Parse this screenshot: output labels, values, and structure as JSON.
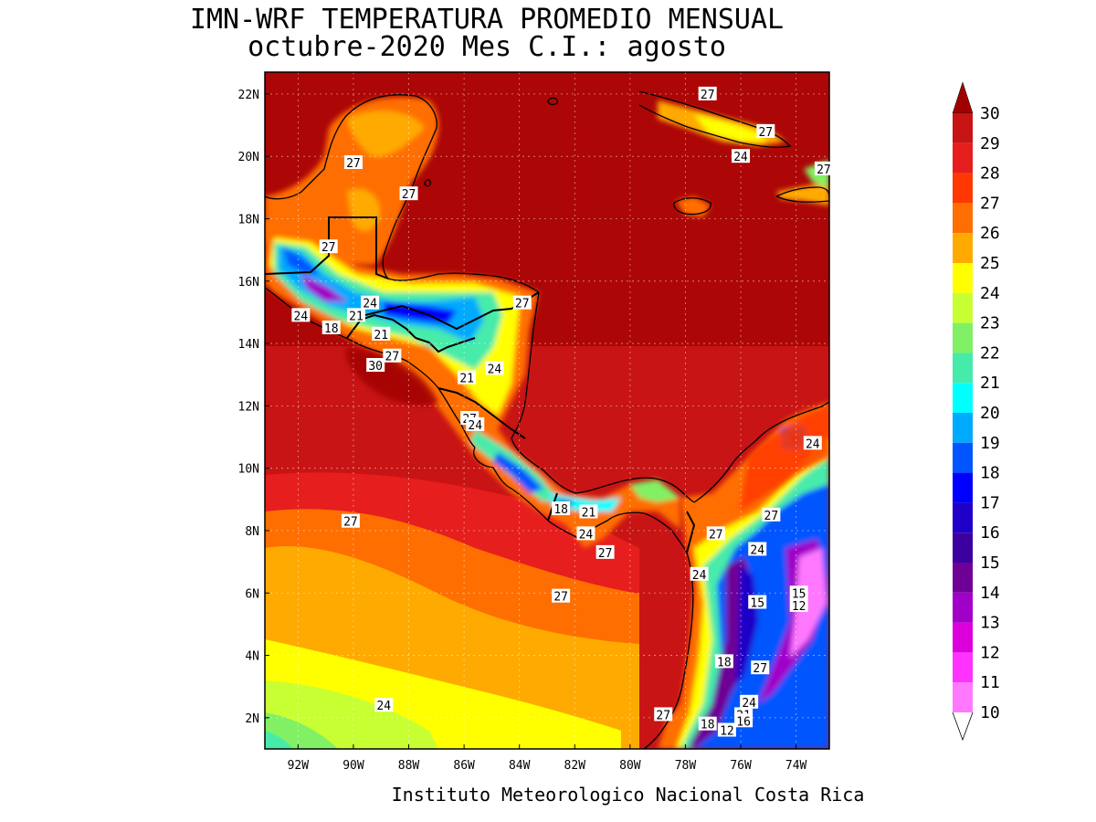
{
  "title_line1": "IMN-WRF  TEMPERATURA PROMEDIO MENSUAL",
  "title_line2": "octubre-2020 Mes C.I.: agosto",
  "footer": "Instituto Meteorologico Nacional Costa Rica",
  "lat_labels": [
    "22N",
    "20N",
    "18N",
    "16N",
    "14N",
    "12N",
    "10N",
    "8N",
    "6N",
    "4N",
    "2N"
  ],
  "lon_labels": [
    "92W",
    "90W",
    "88W",
    "86W",
    "84W",
    "82W",
    "80W",
    "78W",
    "76W",
    "74W"
  ],
  "colorbar": {
    "levels": [
      "30",
      "29",
      "28",
      "27",
      "26",
      "25",
      "24",
      "23",
      "22",
      "21",
      "20",
      "19",
      "18",
      "17",
      "16",
      "15",
      "14",
      "13",
      "12",
      "11",
      "10"
    ],
    "colors": [
      "#a00000",
      "#c81414",
      "#e61e1e",
      "#ff3700",
      "#ff6e00",
      "#ffaa00",
      "#ffff00",
      "#c8ff32",
      "#82f064",
      "#46ebaa",
      "#00ffff",
      "#00aaff",
      "#0055ff",
      "#0000ff",
      "#1e00c8",
      "#3c00a0",
      "#6e0096",
      "#a000c8",
      "#dc00dc",
      "#ff32ff",
      "#ff78ff",
      "#ffb4ff"
    ]
  },
  "contour_labels": [
    {
      "text": "27",
      "lon": -77.2,
      "lat": 22.0
    },
    {
      "text": "27",
      "lon": -75.1,
      "lat": 20.8
    },
    {
      "text": "24",
      "lon": -76.0,
      "lat": 20.0
    },
    {
      "text": "27",
      "lon": -73.0,
      "lat": 19.6
    },
    {
      "text": "27",
      "lon": -90.0,
      "lat": 19.8
    },
    {
      "text": "27",
      "lon": -88.0,
      "lat": 18.8
    },
    {
      "text": "27",
      "lon": -90.9,
      "lat": 17.1
    },
    {
      "text": "24",
      "lon": -89.4,
      "lat": 15.3
    },
    {
      "text": "21",
      "lon": -89.9,
      "lat": 14.9
    },
    {
      "text": "24",
      "lon": -91.9,
      "lat": 14.9
    },
    {
      "text": "18",
      "lon": -90.8,
      "lat": 14.5
    },
    {
      "text": "21",
      "lon": -89.0,
      "lat": 14.3
    },
    {
      "text": "27",
      "lon": -83.9,
      "lat": 15.3
    },
    {
      "text": "27",
      "lon": -88.6,
      "lat": 13.6
    },
    {
      "text": "30",
      "lon": -89.2,
      "lat": 13.3
    },
    {
      "text": "24",
      "lon": -84.9,
      "lat": 13.2
    },
    {
      "text": "21",
      "lon": -85.9,
      "lat": 12.9
    },
    {
      "text": "27",
      "lon": -85.8,
      "lat": 11.6
    },
    {
      "text": "24",
      "lon": -85.6,
      "lat": 11.4
    },
    {
      "text": "24",
      "lon": -73.4,
      "lat": 10.8
    },
    {
      "text": "18",
      "lon": -82.5,
      "lat": 8.7
    },
    {
      "text": "21",
      "lon": -81.5,
      "lat": 8.6
    },
    {
      "text": "27",
      "lon": -90.1,
      "lat": 8.3
    },
    {
      "text": "27",
      "lon": -74.9,
      "lat": 8.5
    },
    {
      "text": "24",
      "lon": -81.6,
      "lat": 7.9
    },
    {
      "text": "27",
      "lon": -76.9,
      "lat": 7.9
    },
    {
      "text": "24",
      "lon": -75.4,
      "lat": 7.4
    },
    {
      "text": "27",
      "lon": -80.9,
      "lat": 7.3
    },
    {
      "text": "24",
      "lon": -77.5,
      "lat": 6.6
    },
    {
      "text": "27",
      "lon": -82.5,
      "lat": 5.9
    },
    {
      "text": "15",
      "lon": -73.9,
      "lat": 6.0
    },
    {
      "text": "15",
      "lon": -75.4,
      "lat": 5.7
    },
    {
      "text": "12",
      "lon": -73.9,
      "lat": 5.6
    },
    {
      "text": "18",
      "lon": -76.6,
      "lat": 3.8
    },
    {
      "text": "27",
      "lon": -75.3,
      "lat": 3.6
    },
    {
      "text": "24",
      "lon": -75.7,
      "lat": 2.5
    },
    {
      "text": "24",
      "lon": -88.9,
      "lat": 2.4
    },
    {
      "text": "21",
      "lon": -75.9,
      "lat": 2.1
    },
    {
      "text": "16",
      "lon": -75.9,
      "lat": 1.9
    },
    {
      "text": "27",
      "lon": -78.8,
      "lat": 2.1
    },
    {
      "text": "18",
      "lon": -77.2,
      "lat": 1.8
    },
    {
      "text": "12",
      "lon": -76.5,
      "lat": 1.6
    }
  ]
}
